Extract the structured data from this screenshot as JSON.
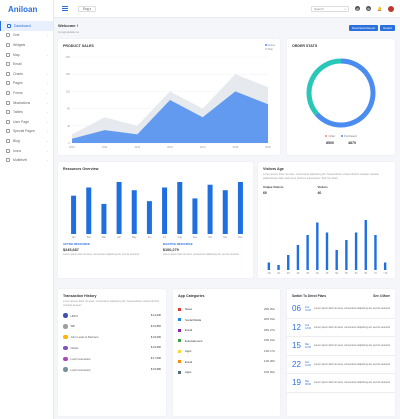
{
  "app": {
    "logo": "Aniloan"
  },
  "sidebar": {
    "items": [
      {
        "label": "Dashboard",
        "active": true,
        "chev": false
      },
      {
        "label": "Grid",
        "chev": true
      },
      {
        "label": "Widgets",
        "chev": false
      },
      {
        "label": "Map",
        "chev": true
      },
      {
        "label": "Email",
        "chev": false
      },
      {
        "label": "Charts",
        "chev": true
      },
      {
        "label": "Pages",
        "chev": true
      },
      {
        "label": "Forms",
        "chev": true
      },
      {
        "label": "Illustrations",
        "chev": true
      },
      {
        "label": "Tables",
        "chev": true
      },
      {
        "label": "User Page",
        "chev": true
      },
      {
        "label": "Special Pages",
        "chev": true
      },
      {
        "label": "Blog",
        "chev": true
      },
      {
        "label": "Icons",
        "chev": true
      },
      {
        "label": "Multilevel",
        "chev": true
      }
    ]
  },
  "topbar": {
    "lang": "Eng ▾",
    "search_placeholder": "Search"
  },
  "page": {
    "title": "Welcome !",
    "subtitle": "Congratulations",
    "btn_report": "Download Report",
    "btn_export": "Export"
  },
  "product_sales": {
    "title": "PRODUCT SALES",
    "legend": [
      "Series",
      "Plan"
    ],
    "colors": {
      "primary": "#4a8cf0",
      "secondary": "#e6e9ee"
    }
  },
  "order_stats": {
    "title": "ORDER STATS",
    "legend": [
      "Order",
      "Purchased"
    ],
    "values": [
      "8500",
      "4870"
    ]
  },
  "resources": {
    "title": "Resources Overview",
    "active_label": "ACTIVE RESOURCE",
    "active_value": "$245,687",
    "active_text": "Lorem ipsum dolor sit amet, consectetur adipiscing elit, sed do eiusmod",
    "inactive_label": "INACTIVE RESOURCE",
    "inactive_value": "$100,279",
    "inactive_text": "Lorem ipsum dolor sit amet, consectetur adipiscing elit, sed do eiusmod"
  },
  "visitors": {
    "title": "Visitors Age",
    "desc": "Lorem ipsum dolor sit amet, consectetur adipiscing elit. Suspendisse ornare lobortis volutpat. Aenean pellentesque diam sed purus rhoncus consectetur. Sed non dolor.",
    "unique_label": "Unique Visitors",
    "unique_value": "60",
    "visitors_label": "Visitors",
    "visitors_value": "40"
  },
  "transactions": {
    "title": "Transaction History",
    "desc": "Lorem ipsum dolor sit amet, consectetur adipiscing elit. Suspendisse ornare lobortis volutpat aenean",
    "rows": [
      {
        "name": "HDFC",
        "amount": "$ 14,690",
        "color": "#3f51b5"
      },
      {
        "name": "SBI",
        "amount": "$ 15,860",
        "color": "#9e9e9e"
      },
      {
        "name": "John Lewis & Partners",
        "amount": "$ 23,690",
        "color": "#ffb300"
      },
      {
        "name": "Clarks",
        "amount": "$ 24,690",
        "color": "#7e57c2"
      },
      {
        "name": "Lush Cosmetics",
        "amount": "$ 17,690",
        "color": "#ab47bc"
      },
      {
        "name": "Lush Cosmetics",
        "amount": "$ 15,980",
        "color": "#78909c"
      }
    ]
  },
  "app_categories": {
    "title": "App Categories",
    "rows": [
      {
        "name": "News",
        "pct": "25% 20m",
        "color": "#e53935"
      },
      {
        "name": "Social Media",
        "pct": "20% 15m",
        "color": "#1e88e5"
      },
      {
        "name": "Email",
        "pct": "18% 27m",
        "color": "#8e24aa"
      },
      {
        "name": "Entertainment",
        "pct": "15% 24m",
        "color": "#43a047"
      },
      {
        "name": "Apps",
        "pct": "14% 17m",
        "color": "#fdd835"
      },
      {
        "name": "Email",
        "pct": "12% 28m",
        "color": "#fb8c00"
      },
      {
        "name": "Apps",
        "pct": "10% 26m",
        "color": "#546e7a"
      }
    ]
  },
  "schedule": {
    "title": "Switch To Direct Plans",
    "more": "See 4 More",
    "rows": [
      {
        "day": "06",
        "month": "Feb",
        "time": "10:00"
      },
      {
        "day": "12",
        "month": "Feb",
        "time": "13:00"
      },
      {
        "day": "15",
        "month": "Mar",
        "time": "10:00"
      },
      {
        "day": "22",
        "month": "Feb",
        "time": "12:00"
      },
      {
        "day": "19",
        "month": "Mar",
        "time": "08:00"
      }
    ],
    "text": "Lorem ipsum dolor sit amet, consectetur adipiscing elit, sed do eiusmod"
  },
  "chart_data": [
    {
      "type": "area",
      "title": "PRODUCT SALES",
      "x": [
        "2010",
        "2011",
        "2012",
        "2013",
        "2014",
        "2015",
        "2016"
      ],
      "series": [
        {
          "name": "Plan",
          "values": [
            20,
            60,
            40,
            120,
            80,
            160,
            130
          ]
        },
        {
          "name": "Series",
          "values": [
            10,
            30,
            20,
            100,
            60,
            120,
            90
          ]
        }
      ],
      "ylim": [
        0,
        200
      ],
      "yticks": [
        0,
        40,
        80,
        120,
        160,
        200
      ]
    },
    {
      "type": "pie",
      "title": "ORDER STATS",
      "categories": [
        "Order",
        "Purchased"
      ],
      "values": [
        8500,
        4870
      ]
    },
    {
      "type": "bar",
      "title": "Resources Overview",
      "categories": [
        "Jan",
        "Feb",
        "Mar",
        "Apr",
        "May",
        "Jun",
        "Jul",
        "Aug",
        "Sep",
        "Oct",
        "Nov",
        "Dec"
      ],
      "values": [
        14,
        17,
        11,
        19,
        16,
        12,
        17,
        19,
        13,
        18,
        16,
        19
      ]
    },
    {
      "type": "bar",
      "title": "Visitors Age",
      "categories": [
        "<20",
        "20",
        "25",
        "30",
        "35",
        "40",
        "45",
        "50",
        "55",
        "60",
        "65",
        "70",
        ">70"
      ],
      "values": [
        3,
        2,
        6,
        10,
        14,
        19,
        15,
        8,
        12,
        15,
        20,
        14,
        3
      ]
    }
  ]
}
